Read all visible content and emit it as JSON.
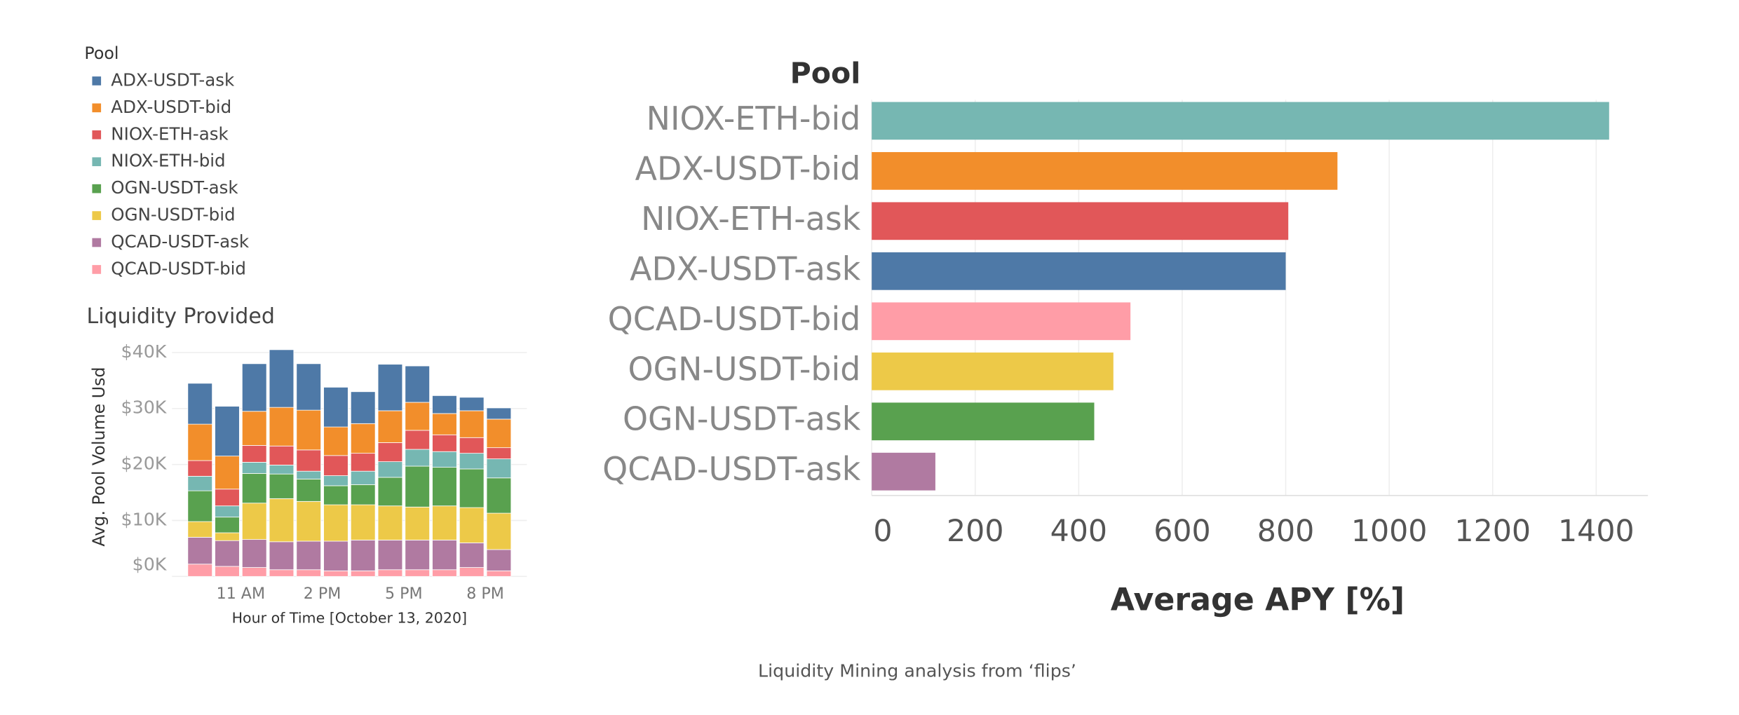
{
  "chart_data": [
    {
      "type": "stacked_bar",
      "title": "Liquidity Provided",
      "legend_title": "Pool",
      "y_label": "Avg. Pool Volume Usd",
      "x_label": "Hour of Time [October 13, 2020]",
      "categories": [
        null,
        null,
        "11 AM",
        null,
        null,
        "2 PM",
        null,
        null,
        "5 PM",
        null,
        null,
        "8 PM"
      ],
      "ylim": [
        0,
        41000
      ],
      "yticks": [
        {
          "value": 0,
          "label": "$0K"
        },
        {
          "value": 10000,
          "label": "$10K"
        },
        {
          "value": 20000,
          "label": "$20K"
        },
        {
          "value": 30000,
          "label": "$30K"
        },
        {
          "value": 40000,
          "label": "$40K"
        }
      ],
      "series": [
        {
          "name": "ADX-USDT-ask",
          "color": "#4e79a7",
          "values": [
            7300,
            8900,
            8500,
            10300,
            8300,
            7100,
            5700,
            8300,
            6500,
            3200,
            2400,
            2000
          ]
        },
        {
          "name": "ADX-USDT-bid",
          "color": "#f28e2b",
          "values": [
            6500,
            5900,
            6100,
            6900,
            7100,
            5100,
            5300,
            5700,
            5000,
            3800,
            4800,
            5100
          ]
        },
        {
          "name": "NIOX-ETH-ask",
          "color": "#e15759",
          "values": [
            2800,
            3000,
            3000,
            3400,
            3800,
            3600,
            3200,
            3400,
            3400,
            3000,
            2800,
            2000
          ]
        },
        {
          "name": "NIOX-ETH-bid",
          "color": "#76b7b2",
          "values": [
            2600,
            2000,
            2000,
            1600,
            1400,
            1800,
            2400,
            2800,
            3000,
            2800,
            2800,
            3400
          ]
        },
        {
          "name": "OGN-USDT-ask",
          "color": "#59a14f",
          "values": [
            5500,
            2800,
            5300,
            4400,
            4000,
            3400,
            3600,
            5100,
            7300,
            6900,
            6900,
            6300
          ]
        },
        {
          "name": "OGN-USDT-bid",
          "color": "#edc948",
          "values": [
            2800,
            1400,
            6500,
            7700,
            7100,
            6500,
            6300,
            6100,
            5900,
            6100,
            6300,
            6500
          ]
        },
        {
          "name": "QCAD-USDT-ask",
          "color": "#b07aa1",
          "values": [
            4800,
            4600,
            5000,
            5000,
            5100,
            5300,
            5500,
            5300,
            5300,
            5300,
            4400,
            3800
          ]
        },
        {
          "name": "QCAD-USDT-bid",
          "color": "#ff9da7",
          "values": [
            2200,
            1800,
            1600,
            1200,
            1200,
            1000,
            1000,
            1200,
            1200,
            1200,
            1600,
            1000
          ]
        }
      ]
    },
    {
      "type": "hbar",
      "category_header": "Pool",
      "x_label": "Average APY [%]",
      "categories": [
        "NIOX-ETH-bid",
        "ADX-USDT-bid",
        "NIOX-ETH-ask",
        "ADX-USDT-ask",
        "QCAD-USDT-bid",
        "OGN-USDT-bid",
        "OGN-USDT-ask",
        "QCAD-USDT-ask"
      ],
      "values": [
        1425,
        900,
        805,
        800,
        500,
        467,
        430,
        123
      ],
      "colors": [
        "#76b7b2",
        "#f28e2b",
        "#e15759",
        "#4e79a7",
        "#ff9da7",
        "#edc948",
        "#59a14f",
        "#b07aa1"
      ],
      "xlim": [
        0,
        1500
      ],
      "xticks": [
        0,
        200,
        400,
        600,
        800,
        1000,
        1200,
        1400
      ],
      "grid": true
    }
  ],
  "caption": "Liquidity Mining analysis from ‘flips’"
}
